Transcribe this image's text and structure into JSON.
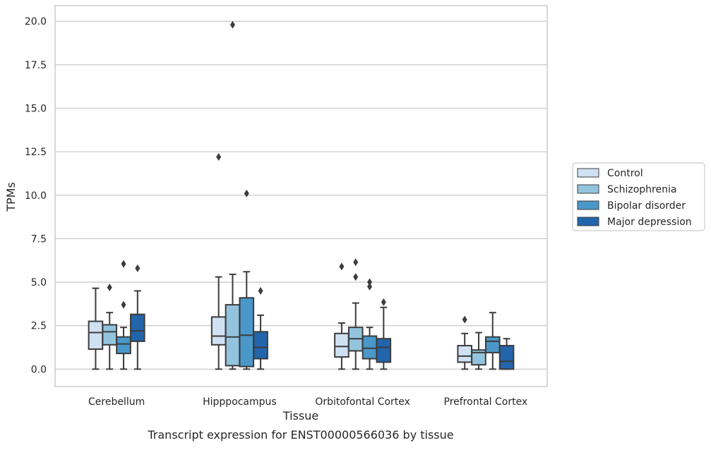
{
  "chart_data": {
    "type": "boxplot",
    "title": "",
    "caption": "Transcript expression for ENST00000566036 by tissue",
    "xlabel": "Tissue",
    "ylabel": "TPMs",
    "ylim": [
      -1.0,
      20.9
    ],
    "yticks": [
      0.0,
      2.5,
      5.0,
      7.5,
      10.0,
      12.5,
      15.0,
      17.5,
      20.0
    ],
    "ytick_labels": [
      "0.0",
      "2.5",
      "5.0",
      "7.5",
      "10.0",
      "12.5",
      "15.0",
      "17.5",
      "20.0"
    ],
    "grid": "horizontal",
    "legend_position": "right",
    "categories": [
      "Cerebellum",
      "Hipppocampus",
      "Orbitofontal Cortex",
      "Prefrontal Cortex"
    ],
    "series": [
      {
        "name": "Control",
        "color": "#cfe1f2",
        "boxes": [
          {
            "whisker_low": 0.0,
            "q1": 1.15,
            "median": 2.1,
            "q3": 2.75,
            "whisker_high": 4.65,
            "outliers": []
          },
          {
            "whisker_low": 0.0,
            "q1": 1.4,
            "median": 1.9,
            "q3": 3.0,
            "whisker_high": 5.3,
            "outliers": [
              12.2
            ]
          },
          {
            "whisker_low": 0.0,
            "q1": 0.7,
            "median": 1.3,
            "q3": 2.05,
            "whisker_high": 2.65,
            "outliers": [
              5.9
            ]
          },
          {
            "whisker_low": 0.0,
            "q1": 0.4,
            "median": 0.75,
            "q3": 1.35,
            "whisker_high": 2.05,
            "outliers": [
              2.85
            ]
          }
        ]
      },
      {
        "name": "Schizophrenia",
        "color": "#93c4de",
        "boxes": [
          {
            "whisker_low": 0.0,
            "q1": 1.4,
            "median": 2.15,
            "q3": 2.55,
            "whisker_high": 3.25,
            "outliers": [
              4.7
            ]
          },
          {
            "whisker_low": 0.0,
            "q1": 0.2,
            "median": 1.85,
            "q3": 3.7,
            "whisker_high": 5.45,
            "outliers": [
              19.8
            ]
          },
          {
            "whisker_low": 0.0,
            "q1": 1.05,
            "median": 1.75,
            "q3": 2.4,
            "whisker_high": 3.8,
            "outliers": [
              6.15,
              5.3
            ]
          },
          {
            "whisker_low": 0.0,
            "q1": 0.25,
            "median": 0.95,
            "q3": 1.1,
            "whisker_high": 2.1,
            "outliers": []
          }
        ]
      },
      {
        "name": "Bipolar disorder",
        "color": "#4a98c9",
        "boxes": [
          {
            "whisker_low": 0.0,
            "q1": 0.9,
            "median": 1.45,
            "q3": 1.85,
            "whisker_high": 2.4,
            "outliers": [
              6.05,
              3.7
            ]
          },
          {
            "whisker_low": 0.0,
            "q1": 0.15,
            "median": 1.95,
            "q3": 4.1,
            "whisker_high": 5.6,
            "outliers": [
              10.1
            ]
          },
          {
            "whisker_low": 0.0,
            "q1": 0.6,
            "median": 1.2,
            "q3": 1.9,
            "whisker_high": 2.4,
            "outliers": [
              5.0,
              4.75
            ]
          },
          {
            "whisker_low": 0.0,
            "q1": 0.95,
            "median": 1.6,
            "q3": 1.85,
            "whisker_high": 3.25,
            "outliers": []
          }
        ]
      },
      {
        "name": "Major depression",
        "color": "#2265ab",
        "boxes": [
          {
            "whisker_low": 0.0,
            "q1": 1.6,
            "median": 2.2,
            "q3": 3.15,
            "whisker_high": 4.5,
            "outliers": [
              5.8
            ]
          },
          {
            "whisker_low": 0.0,
            "q1": 0.6,
            "median": 1.25,
            "q3": 2.15,
            "whisker_high": 3.1,
            "outliers": [
              4.5
            ]
          },
          {
            "whisker_low": 0.0,
            "q1": 0.4,
            "median": 1.25,
            "q3": 1.75,
            "whisker_high": 3.55,
            "outliers": [
              3.85
            ]
          },
          {
            "whisker_low": 0.0,
            "q1": 0.0,
            "median": 0.45,
            "q3": 1.35,
            "whisker_high": 1.75,
            "outliers": []
          }
        ]
      }
    ]
  }
}
